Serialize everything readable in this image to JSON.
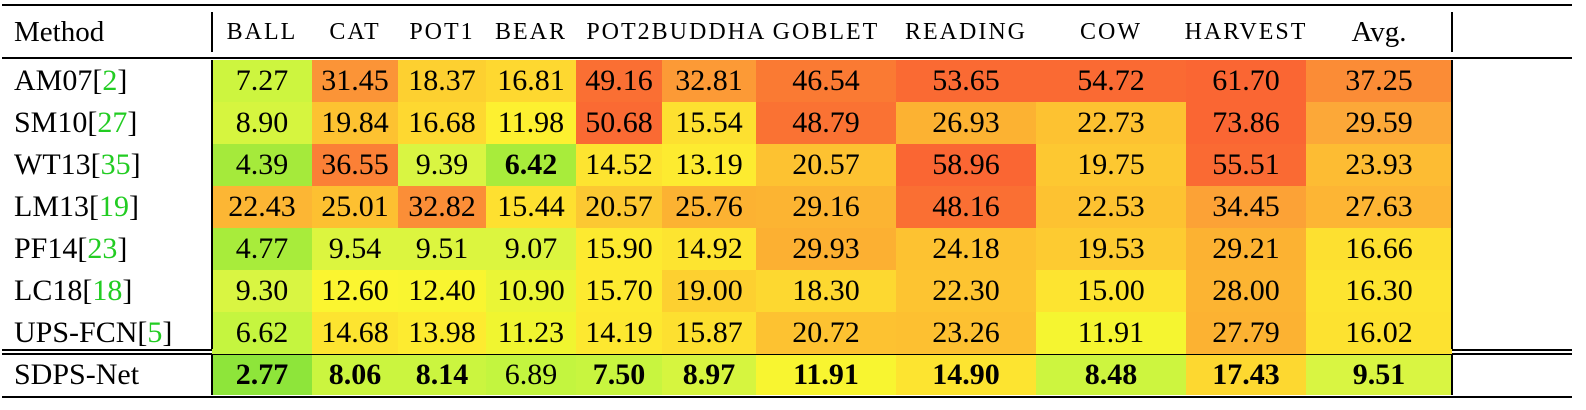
{
  "header": {
    "method_label": "Method",
    "datasets": [
      "BALL",
      "CAT",
      "POT1",
      "BEAR",
      "POT2",
      "BUDDHA",
      "GOBLET",
      "READING",
      "COW",
      "HARVEST"
    ],
    "avg_label": "Avg."
  },
  "rows": [
    {
      "name": "AM07",
      "ref": "2",
      "values": [
        "7.27",
        "31.45",
        "18.37",
        "16.81",
        "49.16",
        "32.81",
        "46.54",
        "53.65",
        "54.72",
        "61.70",
        "37.25"
      ],
      "colors": [
        "#cdf53f",
        "#fb9437",
        "#fdd030",
        "#fed830",
        "#fa6f33",
        "#fc9a36",
        "#fa7a33",
        "#fa6a33",
        "#fa6a33",
        "#fa6633",
        "#fb8c36"
      ],
      "bold": [
        false,
        false,
        false,
        false,
        false,
        false,
        false,
        false,
        false,
        false,
        false
      ]
    },
    {
      "name": "SM10",
      "ref": "27",
      "values": [
        "8.90",
        "19.84",
        "16.68",
        "11.98",
        "50.68",
        "15.54",
        "48.79",
        "26.93",
        "22.73",
        "73.86",
        "29.59"
      ],
      "colors": [
        "#d6f53f",
        "#fdc231",
        "#fed830",
        "#fdf030",
        "#fa6a33",
        "#fde030",
        "#fa7233",
        "#fcb232",
        "#fdc231",
        "#fa6633",
        "#fca838"
      ],
      "bold": [
        false,
        false,
        false,
        false,
        false,
        false,
        false,
        false,
        false,
        false,
        false
      ]
    },
    {
      "name": "WT13",
      "ref": "35",
      "values": [
        "4.39",
        "36.55",
        "9.39",
        "6.42",
        "14.52",
        "13.19",
        "20.57",
        "58.96",
        "19.75",
        "55.51",
        "23.93"
      ],
      "colors": [
        "#a5ea3b",
        "#fb8036",
        "#d9f542",
        "#a8ec3b",
        "#fde430",
        "#fdeb30",
        "#fdc231",
        "#fa6633",
        "#fdc831",
        "#fa6a33",
        "#fdbc33"
      ],
      "bold": [
        false,
        false,
        false,
        true,
        false,
        false,
        false,
        false,
        false,
        false,
        false
      ]
    },
    {
      "name": "LM13",
      "ref": "19",
      "values": [
        "22.43",
        "25.01",
        "32.82",
        "15.44",
        "20.57",
        "25.76",
        "29.16",
        "48.16",
        "22.53",
        "34.45",
        "27.63"
      ],
      "colors": [
        "#fcb634",
        "#fdc031",
        "#fb8e37",
        "#fee030",
        "#fcc832",
        "#fcb232",
        "#fcb432",
        "#fa6f33",
        "#fdc231",
        "#fca236",
        "#fdb534"
      ],
      "bold": [
        false,
        false,
        false,
        false,
        false,
        false,
        false,
        false,
        false,
        false,
        false
      ]
    },
    {
      "name": "PF14",
      "ref": "23",
      "values": [
        "4.77",
        "9.54",
        "9.51",
        "9.07",
        "15.90",
        "14.92",
        "29.93",
        "24.18",
        "19.53",
        "29.21",
        "16.66"
      ],
      "colors": [
        "#a8ec3b",
        "#dcf53f",
        "#dcf53f",
        "#dcf53f",
        "#fdea30",
        "#fde430",
        "#fcb032",
        "#fdc231",
        "#fdcb31",
        "#fcb232",
        "#fde030"
      ],
      "bold": [
        false,
        false,
        false,
        false,
        false,
        false,
        false,
        false,
        false,
        false,
        false
      ]
    },
    {
      "name": "LC18",
      "ref": "18",
      "values": [
        "9.30",
        "12.60",
        "12.40",
        "10.90",
        "15.70",
        "19.00",
        "18.30",
        "22.30",
        "15.00",
        "28.00",
        "16.30"
      ],
      "colors": [
        "#d9f542",
        "#fbf530",
        "#f9f530",
        "#eaf536",
        "#fdea30",
        "#fdd030",
        "#fdd830",
        "#fdc431",
        "#fde430",
        "#fcb432",
        "#fde430"
      ],
      "bold": [
        false,
        false,
        false,
        false,
        false,
        false,
        false,
        false,
        false,
        false,
        false
      ]
    },
    {
      "name": "UPS-FCN",
      "ref": "5",
      "values": [
        "6.62",
        "14.68",
        "13.98",
        "11.23",
        "14.19",
        "15.87",
        "20.72",
        "23.26",
        "11.91",
        "27.79",
        "16.02"
      ],
      "colors": [
        "#c5f53f",
        "#fde430",
        "#fdeb30",
        "#f0f530",
        "#fde830",
        "#fde030",
        "#fdc231",
        "#fdc031",
        "#f5f530",
        "#fcb232",
        "#fde230"
      ],
      "bold": [
        false,
        false,
        false,
        false,
        false,
        false,
        false,
        false,
        false,
        false,
        false
      ]
    }
  ],
  "final": {
    "name": "SDPS-Net",
    "values": [
      "2.77",
      "8.06",
      "8.14",
      "6.89",
      "7.50",
      "8.97",
      "11.91",
      "14.90",
      "8.48",
      "17.43",
      "9.51"
    ],
    "colors": [
      "#8ee53a",
      "#cbf53f",
      "#cbf53f",
      "#c3f53f",
      "#c8f53f",
      "#d6f53f",
      "#f8f530",
      "#fde430",
      "#cdf53f",
      "#fdd830",
      "#d9f542"
    ],
    "bold": [
      true,
      true,
      true,
      false,
      true,
      true,
      true,
      true,
      true,
      true,
      true
    ]
  }
}
